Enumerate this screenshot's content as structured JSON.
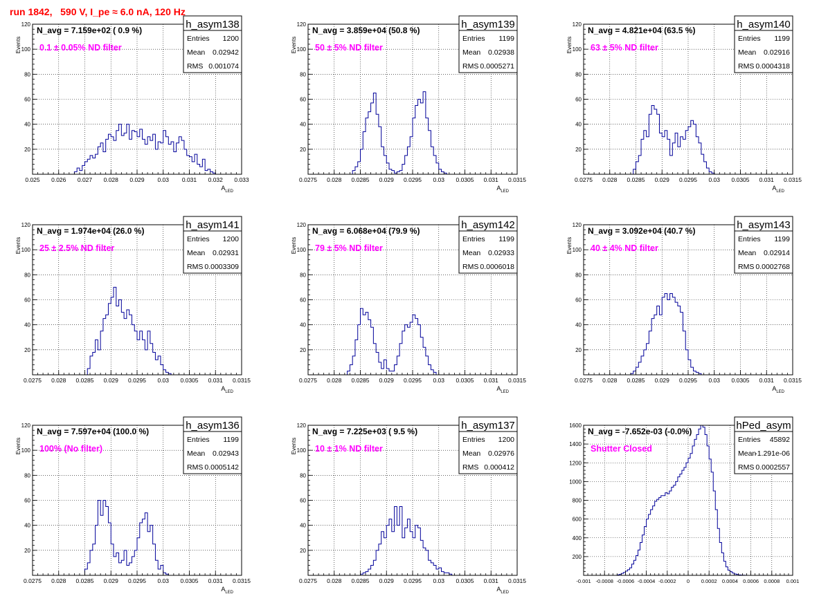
{
  "page_title": "run 1842,   590 V, I_pe ≈ 6.0 nA, 120 Hz",
  "chart_data": [
    {
      "type": "histogram",
      "name": "h_asym138",
      "navg": "N_avg = 7.159e+02 ( 0.9 %)",
      "filter": "0.1 ± 0.05% ND filter",
      "stats": [
        [
          "Entries",
          "1200"
        ],
        [
          "Mean",
          "0.02942"
        ],
        [
          "RMS",
          "0.001074"
        ]
      ],
      "xlabel": "A_LED",
      "ylabel": "Events",
      "xlim": [
        0.025,
        0.033
      ],
      "ylim": [
        0,
        120
      ],
      "xticks": [
        0.025,
        0.026,
        0.027,
        0.028,
        0.029,
        0.03,
        0.031,
        0.032,
        0.033
      ],
      "xtick_labels": [
        "0.025",
        "0.026",
        "0.027",
        "0.028",
        "0.029",
        "0.03",
        "0.031",
        "0.032",
        "0.033"
      ],
      "yticks": [
        0,
        20,
        40,
        60,
        80,
        100,
        120
      ],
      "ytick_labels": [
        "",
        "20",
        "40",
        "60",
        "80",
        "100",
        "120"
      ],
      "bin_start": 0.0265,
      "bin_width": 0.0001,
      "counts": [
        0,
        2,
        5,
        3,
        7,
        10,
        12,
        15,
        13,
        16,
        22,
        25,
        18,
        28,
        32,
        30,
        27,
        35,
        40,
        31,
        33,
        40,
        28,
        35,
        34,
        30,
        36,
        28,
        24,
        30,
        27,
        32,
        20,
        26,
        25,
        35,
        30,
        24,
        26,
        18,
        25,
        30,
        27,
        20,
        15,
        14,
        10,
        16,
        8,
        6,
        12,
        3,
        4,
        2,
        1
      ]
    },
    {
      "type": "histogram",
      "name": "h_asym139",
      "navg": "N_avg = 3.859e+04 (50.8 %)",
      "filter": "50 ± 5% ND filter",
      "stats": [
        [
          "Entries",
          "1199"
        ],
        [
          "Mean",
          "0.02938"
        ],
        [
          "RMS",
          "0.0005271"
        ]
      ],
      "xlabel": "A_LED",
      "ylabel": "Events",
      "xlim": [
        0.0275,
        0.0315
      ],
      "ylim": [
        0,
        120
      ],
      "xticks": [
        0.0275,
        0.028,
        0.0285,
        0.029,
        0.0295,
        0.03,
        0.0305,
        0.031,
        0.0315
      ],
      "xtick_labels": [
        "0.0275",
        "0.028",
        "0.0285",
        "0.029",
        "0.0295",
        "0.03",
        "0.0305",
        "0.031",
        "0.0315"
      ],
      "yticks": [
        0,
        20,
        40,
        60,
        80,
        100,
        120
      ],
      "ytick_labels": [
        "",
        "20",
        "40",
        "60",
        "80",
        "100",
        "120"
      ],
      "bin_start": 0.0283,
      "bin_width": 5e-05,
      "counts": [
        0,
        3,
        6,
        10,
        20,
        34,
        45,
        50,
        57,
        65,
        48,
        38,
        22,
        15,
        9,
        4,
        3,
        1,
        2,
        3,
        8,
        15,
        22,
        30,
        45,
        55,
        60,
        57,
        66,
        45,
        35,
        22,
        15,
        9,
        4,
        2,
        1
      ]
    },
    {
      "type": "histogram",
      "name": "h_asym140",
      "navg": "N_avg = 4.821e+04 (63.5 %)",
      "filter": "63 ± 5% ND filter",
      "stats": [
        [
          "Entries",
          "1199"
        ],
        [
          "Mean",
          "0.02916"
        ],
        [
          "RMS",
          "0.0004318"
        ]
      ],
      "xlabel": "A_LED",
      "ylabel": "Events",
      "xlim": [
        0.0275,
        0.0315
      ],
      "ylim": [
        0,
        120
      ],
      "xticks": [
        0.0275,
        0.028,
        0.0285,
        0.029,
        0.0295,
        0.03,
        0.0305,
        0.031,
        0.0315
      ],
      "xtick_labels": [
        "0.0275",
        "0.028",
        "0.0285",
        "0.029",
        "0.0295",
        "0.03",
        "0.0305",
        "0.031",
        "0.0315"
      ],
      "yticks": [
        0,
        20,
        40,
        60,
        80,
        100,
        120
      ],
      "ytick_labels": [
        "",
        "20",
        "40",
        "60",
        "80",
        "100",
        "120"
      ],
      "bin_start": 0.0284,
      "bin_width": 5e-05,
      "counts": [
        0,
        4,
        10,
        15,
        28,
        35,
        30,
        48,
        55,
        52,
        48,
        33,
        30,
        35,
        28,
        15,
        25,
        33,
        22,
        30,
        28,
        35,
        38,
        43,
        40,
        30,
        25,
        16,
        10,
        5,
        2,
        1
      ]
    },
    {
      "type": "histogram",
      "name": "h_asym141",
      "navg": "N_avg = 1.974e+04 (26.0 %)",
      "filter": "25 ± 2.5% ND filter",
      "stats": [
        [
          "Entries",
          "1200"
        ],
        [
          "Mean",
          "0.02931"
        ],
        [
          "RMS",
          "0.0003309"
        ]
      ],
      "xlabel": "A_LED",
      "ylabel": "Events",
      "xlim": [
        0.0275,
        0.0315
      ],
      "ylim": [
        0,
        120
      ],
      "xticks": [
        0.0275,
        0.028,
        0.0285,
        0.029,
        0.0295,
        0.03,
        0.0305,
        0.031,
        0.0315
      ],
      "xtick_labels": [
        "0.0275",
        "0.028",
        "0.0285",
        "0.029",
        "0.0295",
        "0.03",
        "0.0305",
        "0.031",
        "0.0315"
      ],
      "yticks": [
        0,
        20,
        40,
        60,
        80,
        100,
        120
      ],
      "ytick_labels": [
        "",
        "20",
        "40",
        "60",
        "80",
        "100",
        "120"
      ],
      "bin_start": 0.02855,
      "bin_width": 5e-05,
      "counts": [
        5,
        15,
        18,
        28,
        20,
        35,
        45,
        48,
        57,
        62,
        70,
        55,
        60,
        50,
        45,
        52,
        48,
        40,
        35,
        28,
        35,
        28,
        20,
        35,
        25,
        18,
        12,
        15,
        8,
        4,
        2,
        1
      ]
    },
    {
      "type": "histogram",
      "name": "h_asym142",
      "navg": "N_avg = 6.068e+04 (79.9 %)",
      "filter": "79 ± 5% ND filter",
      "stats": [
        [
          "Entries",
          "1199"
        ],
        [
          "Mean",
          "0.02933"
        ],
        [
          "RMS",
          "0.0006018"
        ]
      ],
      "xlabel": "A_LED",
      "ylabel": "Events",
      "xlim": [
        0.0275,
        0.0315
      ],
      "ylim": [
        0,
        120
      ],
      "xticks": [
        0.0275,
        0.028,
        0.0285,
        0.029,
        0.0295,
        0.03,
        0.0305,
        0.031,
        0.0315
      ],
      "xtick_labels": [
        "0.0275",
        "0.028",
        "0.0285",
        "0.029",
        "0.0295",
        "0.03",
        "0.0305",
        "0.031",
        "0.0315"
      ],
      "yticks": [
        0,
        20,
        40,
        60,
        80,
        100,
        120
      ],
      "ytick_labels": [
        "",
        "20",
        "40",
        "60",
        "80",
        "100",
        "120"
      ],
      "bin_start": 0.0282,
      "bin_width": 5e-05,
      "counts": [
        0,
        3,
        8,
        15,
        28,
        40,
        53,
        48,
        50,
        44,
        38,
        25,
        18,
        10,
        5,
        12,
        5,
        3,
        3,
        8,
        15,
        25,
        35,
        40,
        38,
        42,
        48,
        45,
        40,
        30,
        22,
        15,
        8,
        4,
        2
      ]
    },
    {
      "type": "histogram",
      "name": "h_asym143",
      "navg": "N_avg = 3.092e+04 (40.7 %)",
      "filter": "40 ± 4% ND filter",
      "stats": [
        [
          "Entries",
          "1199"
        ],
        [
          "Mean",
          "0.02914"
        ],
        [
          "RMS",
          "0.0002768"
        ]
      ],
      "xlabel": "A_LED",
      "ylabel": "Events",
      "xlim": [
        0.0275,
        0.0315
      ],
      "ylim": [
        0,
        120
      ],
      "xticks": [
        0.0275,
        0.028,
        0.0285,
        0.029,
        0.0295,
        0.03,
        0.0305,
        0.031,
        0.0315
      ],
      "xtick_labels": [
        "0.0275",
        "0.028",
        "0.0285",
        "0.029",
        "0.0295",
        "0.03",
        "0.0305",
        "0.031",
        "0.0315"
      ],
      "yticks": [
        0,
        20,
        40,
        60,
        80,
        100,
        120
      ],
      "ytick_labels": [
        "",
        "20",
        "40",
        "60",
        "80",
        "100",
        "120"
      ],
      "bin_start": 0.0284,
      "bin_width": 5e-05,
      "counts": [
        1,
        3,
        6,
        10,
        15,
        20,
        25,
        35,
        45,
        48,
        55,
        48,
        62,
        65,
        60,
        65,
        62,
        58,
        55,
        50,
        35,
        20,
        12,
        6,
        3,
        2,
        1
      ]
    },
    {
      "type": "histogram",
      "name": "h_asym136",
      "navg": "N_avg = 7.597e+04 (100.0 %)",
      "filter": "100% (No filter)",
      "stats": [
        [
          "Entries",
          "1199"
        ],
        [
          "Mean",
          "0.02943"
        ],
        [
          "RMS",
          "0.0005142"
        ]
      ],
      "xlabel": "A_LED",
      "ylabel": "Events",
      "xlim": [
        0.0275,
        0.0315
      ],
      "ylim": [
        0,
        120
      ],
      "xticks": [
        0.0275,
        0.028,
        0.0285,
        0.029,
        0.0295,
        0.03,
        0.0305,
        0.031,
        0.0315
      ],
      "xtick_labels": [
        "0.0275",
        "0.028",
        "0.0285",
        "0.029",
        "0.0295",
        "0.03",
        "0.0305",
        "0.031",
        "0.0315"
      ],
      "yticks": [
        0,
        20,
        40,
        60,
        80,
        100,
        120
      ],
      "ytick_labels": [
        "",
        "20",
        "40",
        "60",
        "80",
        "100",
        "120"
      ],
      "bin_start": 0.0285,
      "bin_width": 5e-05,
      "counts": [
        5,
        10,
        20,
        25,
        40,
        60,
        48,
        60,
        55,
        42,
        25,
        15,
        18,
        10,
        12,
        20,
        8,
        10,
        15,
        20,
        30,
        42,
        45,
        50,
        35,
        40,
        25,
        12,
        5,
        8,
        2,
        1
      ]
    },
    {
      "type": "histogram",
      "name": "h_asym137",
      "navg": "N_avg = 7.225e+03 ( 9.5 %)",
      "filter": "10 ± 1% ND filter",
      "stats": [
        [
          "Entries",
          "1200"
        ],
        [
          "Mean",
          "0.02976"
        ],
        [
          "RMS",
          "0.000412"
        ]
      ],
      "xlabel": "A_LED",
      "ylabel": "Events",
      "xlim": [
        0.0275,
        0.0315
      ],
      "ylim": [
        0,
        120
      ],
      "xticks": [
        0.0275,
        0.028,
        0.0285,
        0.029,
        0.0295,
        0.03,
        0.0305,
        0.031,
        0.0315
      ],
      "xtick_labels": [
        "0.0275",
        "0.028",
        "0.0285",
        "0.029",
        "0.0295",
        "0.03",
        "0.0305",
        "0.031",
        "0.0315"
      ],
      "yticks": [
        0,
        20,
        40,
        60,
        80,
        100,
        120
      ],
      "ytick_labels": [
        "",
        "20",
        "40",
        "60",
        "80",
        "100",
        "120"
      ],
      "bin_start": 0.0285,
      "bin_width": 5e-05,
      "counts": [
        1,
        2,
        3,
        5,
        8,
        12,
        20,
        25,
        35,
        30,
        40,
        45,
        35,
        55,
        40,
        55,
        30,
        38,
        45,
        35,
        30,
        40,
        38,
        28,
        22,
        20,
        12,
        10,
        8,
        5,
        6,
        3,
        2,
        2,
        1
      ]
    },
    {
      "type": "histogram",
      "name": "hPed_asym",
      "navg": "N_avg = -7.652e-03 (-0.0%)",
      "filter": "Shutter Closed",
      "stats": [
        [
          "Entries",
          "45892"
        ],
        [
          "Mean",
          "-1.291e-06"
        ],
        [
          "RMS",
          "0.0002557"
        ]
      ],
      "xlabel": "",
      "ylabel": "",
      "xlim": [
        -0.001,
        0.001
      ],
      "ylim": [
        0,
        1600
      ],
      "xticks": [
        -0.001,
        -0.0008,
        -0.0006,
        -0.0004,
        -0.0002,
        0,
        0.0002,
        0.0004,
        0.0006,
        0.0008,
        0.001
      ],
      "xtick_labels": [
        "-0.001",
        "-0.0008",
        "-0.0006",
        "-0.0004",
        "-0.0002",
        "0",
        "0.0002",
        "0.0004",
        "0.0006",
        "0.0008",
        "0.001"
      ],
      "yticks": [
        0,
        200,
        400,
        600,
        800,
        1000,
        1200,
        1400,
        1600
      ],
      "ytick_labels": [
        "",
        "200",
        "400",
        "600",
        "800",
        "1000",
        "1200",
        "1400",
        "1600"
      ],
      "bin_start": -0.0007,
      "bin_width": 2e-05,
      "counts": [
        0,
        5,
        10,
        20,
        30,
        45,
        60,
        80,
        120,
        160,
        210,
        270,
        350,
        430,
        520,
        600,
        650,
        700,
        740,
        790,
        810,
        830,
        850,
        850,
        880,
        870,
        900,
        940,
        960,
        1000,
        1050,
        1080,
        1120,
        1150,
        1200,
        1250,
        1300,
        1380,
        1450,
        1500,
        1560,
        1600,
        1580,
        1500,
        1380,
        1240,
        1100,
        900,
        700,
        500,
        350,
        240,
        150,
        90,
        55,
        40,
        25,
        15,
        10,
        5,
        3,
        2,
        1
      ]
    }
  ]
}
